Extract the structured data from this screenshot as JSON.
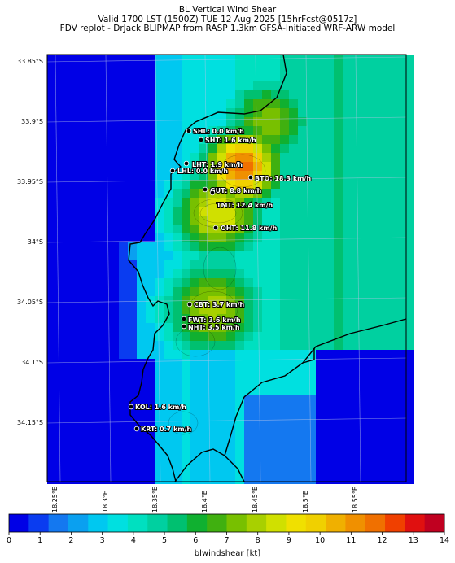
{
  "title": {
    "line1": "BL Vertical Wind Shear",
    "line2": "Valid 1700 LST (1500Z) TUE 12 Aug 2025 [15hrFcst@0517z]",
    "line3": "FDV replot - DrJack BLIPMAP from RASP 1.3km GFSA-Initiated WRF-ARW model"
  },
  "axes": {
    "lat_labels": [
      "33.85°S",
      "33.9°S",
      "33.95°S",
      "34°S",
      "34.05°S",
      "34.1°S",
      "34.15°S"
    ],
    "lon_labels": [
      "18.25°E",
      "18.3°E",
      "18.35°E",
      "18.4°E",
      "18.45°E",
      "18.5°E",
      "18.55°E"
    ]
  },
  "stations": [
    {
      "label": "SHL: 0.0 km/h",
      "value": 0.0
    },
    {
      "label": "SHT: 1.6 km/h",
      "value": 1.6
    },
    {
      "label": "LHT: 1.9 km/h",
      "value": 1.9
    },
    {
      "label": "LHL: 0.0 km/h",
      "value": 0.0
    },
    {
      "label": "BTO: 18.3 km/h",
      "value": 18.3
    },
    {
      "label": "GUT: 8.8 km/h",
      "value": 8.8
    },
    {
      "label": "TMT: 12.4 km/h",
      "value": 12.4
    },
    {
      "label": "OHT: 11.8 km/h",
      "value": 11.8
    },
    {
      "label": "CBT: 3.7 km/h",
      "value": 3.7
    },
    {
      "label": "FWT: 3.6 km/h",
      "value": 3.6
    },
    {
      "label": "NHT: 3.5 km/h",
      "value": 3.5
    },
    {
      "label": "KOL: 1.6 km/h",
      "value": 1.6
    },
    {
      "label": "KRT: 0.7 km/h",
      "value": 0.7
    }
  ],
  "colorbar": {
    "ticks": [
      "0",
      "1",
      "2",
      "3",
      "4",
      "5",
      "6",
      "7",
      "8",
      "9",
      "10",
      "11",
      "12",
      "13",
      "14"
    ],
    "label": "blwindshear [kt]",
    "colors": [
      "#0000e6",
      "#0a3cf0",
      "#1478f0",
      "#0aa0f0",
      "#00c8f0",
      "#00e0e0",
      "#00e0c0",
      "#00d0a0",
      "#00c070",
      "#10b030",
      "#40b010",
      "#78c000",
      "#a8d000",
      "#d0e000",
      "#f0e000",
      "#f0d000",
      "#f0b000",
      "#f09000",
      "#f07000",
      "#f04000",
      "#e01010",
      "#c00020"
    ]
  }
}
